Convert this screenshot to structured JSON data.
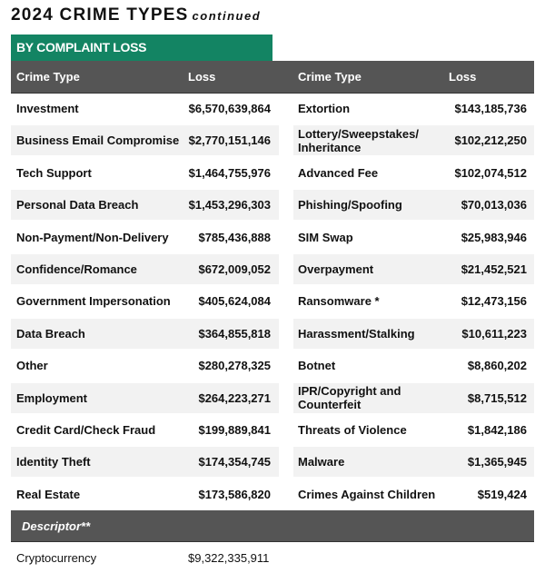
{
  "title": "2024 CRIME TYPES",
  "title_suffix": "continued",
  "section": "BY COMPLAINT LOSS",
  "columns": [
    "Crime Type",
    "Loss",
    "Crime Type",
    "Loss"
  ],
  "left": [
    [
      "Investment",
      "$6,570,639,864"
    ],
    [
      "Business Email Compromise",
      "$2,770,151,146"
    ],
    [
      "Tech Support",
      "$1,464,755,976"
    ],
    [
      "Personal Data Breach",
      "$1,453,296,303"
    ],
    [
      "Non-Payment/Non-Delivery",
      "$785,436,888"
    ],
    [
      "Confidence/Romance",
      "$672,009,052"
    ],
    [
      "Government Impersonation",
      "$405,624,084"
    ],
    [
      "Data Breach",
      "$364,855,818"
    ],
    [
      "Other",
      "$280,278,325"
    ],
    [
      "Employment",
      "$264,223,271"
    ],
    [
      "Credit Card/Check Fraud",
      "$199,889,841"
    ],
    [
      "Identity Theft",
      "$174,354,745"
    ],
    [
      "Real Estate",
      "$173,586,820"
    ]
  ],
  "right": [
    [
      "Extortion",
      "$143,185,736"
    ],
    [
      "Lottery/Sweepstakes/ Inheritance",
      "$102,212,250"
    ],
    [
      "Advanced Fee",
      "$102,074,512"
    ],
    [
      "Phishing/Spoofing",
      "$70,013,036"
    ],
    [
      "SIM Swap",
      "$25,983,946"
    ],
    [
      "Overpayment",
      "$21,452,521"
    ],
    [
      "Ransomware *",
      "$12,473,156"
    ],
    [
      "Harassment/Stalking",
      "$10,611,223"
    ],
    [
      "Botnet",
      "$8,860,202"
    ],
    [
      "IPR/Copyright and Counterfeit",
      "$8,715,512"
    ],
    [
      "Threats of Violence",
      "$1,842,186"
    ],
    [
      "Malware",
      "$1,365,945"
    ],
    [
      "Crimes Against Children",
      "$519,424"
    ]
  ],
  "descriptor": {
    "label": "Descriptor**",
    "rows": [
      [
        "Cryptocurrency",
        "$9,322,335,911"
      ]
    ]
  },
  "colors": {
    "accent": "#138463",
    "header": "#555555",
    "stripe": "#f2f2f2"
  }
}
